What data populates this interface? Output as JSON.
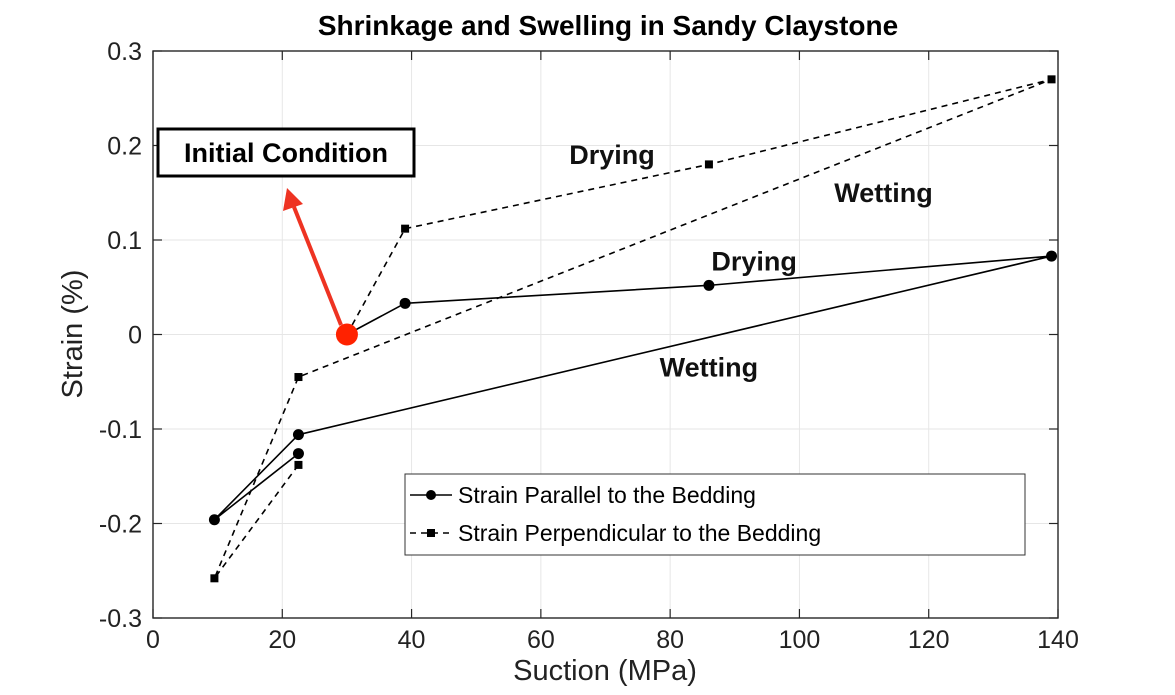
{
  "chart_data": {
    "type": "line",
    "title": "Shrinkage and Swelling in Sandy Claystone",
    "xlabel": "Suction (MPa)",
    "ylabel": "Strain (%)",
    "xlim": [
      0,
      140
    ],
    "ylim": [
      -0.3,
      0.3
    ],
    "xticks": [
      0,
      20,
      40,
      60,
      80,
      100,
      120,
      140
    ],
    "yticks": [
      -0.3,
      -0.2,
      -0.1,
      0,
      0.1,
      0.2,
      0.3
    ],
    "xtick_labels": [
      "0",
      "20",
      "40",
      "60",
      "80",
      "100",
      "120",
      "140"
    ],
    "ytick_labels": [
      "-0.3",
      "-0.2",
      "-0.1",
      "0",
      "0.1",
      "0.2",
      "0.3"
    ],
    "grid": true,
    "legend_position": "bottom-right",
    "series": [
      {
        "name": "Strain Parallel to the Bedding",
        "line_style": "solid",
        "marker": "circle",
        "color": "#000000",
        "x": [
          30,
          39,
          86,
          139,
          22.5,
          9.5,
          22.5
        ],
        "y": [
          0,
          0.033,
          0.052,
          0.083,
          -0.106,
          -0.196,
          -0.126
        ]
      },
      {
        "name": "Strain Perpendicular to the Bedding",
        "line_style": "dashed",
        "marker": "square",
        "color": "#000000",
        "x": [
          30,
          39,
          86,
          139,
          22.5,
          9.5,
          22.5
        ],
        "y": [
          0,
          0.112,
          0.18,
          0.27,
          -0.045,
          -0.258,
          -0.138
        ]
      }
    ],
    "initial_point": {
      "x": 30,
      "y": 0,
      "color": "#ff2200"
    },
    "annotations": [
      {
        "text": "Drying",
        "x": 71,
        "y": 0.19
      },
      {
        "text": "Wetting",
        "x": 113,
        "y": 0.15
      },
      {
        "text": "Drying",
        "x": 93,
        "y": 0.077
      },
      {
        "text": "Wetting",
        "x": 86,
        "y": -0.035
      }
    ],
    "callout": {
      "text": "Initial Condition",
      "color": "#ee3322"
    }
  }
}
